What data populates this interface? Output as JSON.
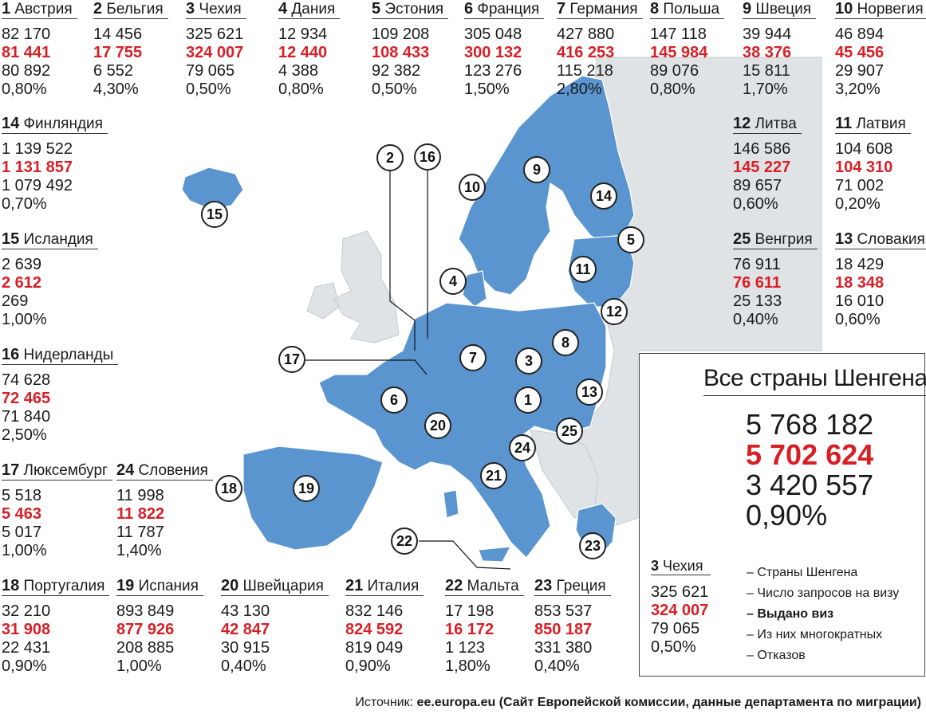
{
  "countries": [
    {
      "num": "1",
      "name": "Австрия",
      "requests": "82 170",
      "issued": "81 441",
      "multi": "80 892",
      "refusal": "0,80%"
    },
    {
      "num": "2",
      "name": "Бельгия",
      "requests": "14 456",
      "issued": "17 755",
      "multi": "6 552",
      "refusal": "4,30%"
    },
    {
      "num": "3",
      "name": "Чехия",
      "requests": "325 621",
      "issued": "324 007",
      "multi": "79 065",
      "refusal": "0,50%"
    },
    {
      "num": "4",
      "name": "Дания",
      "requests": "12 934",
      "issued": "12 440",
      "multi": "4 388",
      "refusal": "0,80%"
    },
    {
      "num": "5",
      "name": "Эстония",
      "requests": "109 208",
      "issued": "108 433",
      "multi": "92 382",
      "refusal": "0,50%"
    },
    {
      "num": "6",
      "name": "Франция",
      "requests": "305 048",
      "issued": "300 132",
      "multi": "123 276",
      "refusal": "1,50%"
    },
    {
      "num": "7",
      "name": "Германия",
      "requests": "427 880",
      "issued": "416 253",
      "multi": "115 218",
      "refusal": "2,80%"
    },
    {
      "num": "8",
      "name": "Польша",
      "requests": "147 118",
      "issued": "145 984",
      "multi": "89 076",
      "refusal": "0,80%"
    },
    {
      "num": "9",
      "name": "Швеция",
      "requests": "39 944",
      "issued": "38 376",
      "multi": "15 811",
      "refusal": "1,70%"
    },
    {
      "num": "10",
      "name": "Норвегия",
      "requests": "46 894",
      "issued": "45 456",
      "multi": "29 907",
      "refusal": "3,20%"
    },
    {
      "num": "14",
      "name": "Финляндия",
      "requests": "1 139 522",
      "issued": "1 131 857",
      "multi": "1 079 492",
      "refusal": "0,70%"
    },
    {
      "num": "12",
      "name": "Литва",
      "requests": "146 586",
      "issued": "145 227",
      "multi": "89 657",
      "refusal": "0,60%"
    },
    {
      "num": "11",
      "name": "Латвия",
      "requests": "104 608",
      "issued": "104 310",
      "multi": "71 002",
      "refusal": "0,20%"
    },
    {
      "num": "15",
      "name": "Исландия",
      "requests": "2 639",
      "issued": "2 612",
      "multi": "269",
      "refusal": "1,00%"
    },
    {
      "num": "25",
      "name": "Венгрия",
      "requests": "76 911",
      "issued": "76 611",
      "multi": "25 133",
      "refusal": "0,40%"
    },
    {
      "num": "13",
      "name": "Словакия",
      "requests": "18 429",
      "issued": "18 348",
      "multi": "16 010",
      "refusal": "0,60%"
    },
    {
      "num": "16",
      "name": "Нидерланды",
      "requests": "74 628",
      "issued": "72 465",
      "multi": "71 840",
      "refusal": "2,50%"
    },
    {
      "num": "17",
      "name": "Люксембург",
      "requests": "5 518",
      "issued": "5 463",
      "multi": "5 017",
      "refusal": "1,00%"
    },
    {
      "num": "24",
      "name": "Словения",
      "requests": "11 998",
      "issued": "11 822",
      "multi": "11 787",
      "refusal": "1,40%"
    },
    {
      "num": "18",
      "name": "Португалия",
      "requests": "32 210",
      "issued": "31 908",
      "multi": "22 431",
      "refusal": "0,90%"
    },
    {
      "num": "19",
      "name": "Испания",
      "requests": "893 849",
      "issued": "877 926",
      "multi": "208 885",
      "refusal": "1,00%"
    },
    {
      "num": "20",
      "name": "Швейцария",
      "requests": "43 130",
      "issued": "42 847",
      "multi": "30 915",
      "refusal": "0,40%"
    },
    {
      "num": "21",
      "name": "Италия",
      "requests": "832 146",
      "issued": "824 592",
      "multi": "819 049",
      "refusal": "0,90%"
    },
    {
      "num": "22",
      "name": "Мальта",
      "requests": "17 198",
      "issued": "16 172",
      "multi": "1 123",
      "refusal": "1,80%"
    },
    {
      "num": "23",
      "name": "Греция",
      "requests": "853 537",
      "issued": "850 187",
      "multi": "331 380",
      "refusal": "0,40%"
    }
  ],
  "markers": [
    "1",
    "2",
    "3",
    "4",
    "5",
    "6",
    "7",
    "8",
    "9",
    "10",
    "11",
    "12",
    "13",
    "14",
    "15",
    "16",
    "17",
    "18",
    "19",
    "20",
    "21",
    "22",
    "23",
    "24",
    "25"
  ],
  "total": {
    "title": "Все страны Шенгена",
    "requests": "5 768 182",
    "issued": "5 702 624",
    "multi": "3 420 557",
    "refusal": "0,90%"
  },
  "legend": {
    "sample": {
      "num": "3",
      "name": "Чехия",
      "requests": "325 621",
      "issued": "324 007",
      "multi": "79 065",
      "refusal": "0,50%"
    },
    "items": [
      "– Страны Шенгена",
      "– Число запросов на визу",
      "– Выдано виз",
      "– Из них многократных",
      "– Отказов"
    ]
  },
  "source": {
    "label": "Источник:",
    "text": "ee.europa.eu (Сайт Европейской комиссии, данные департамента по миграции)"
  },
  "colors": {
    "schengen": "#5a95cf",
    "other": "#dfe3e6",
    "highlight": "#d81f26",
    "border": "#ffffff"
  }
}
